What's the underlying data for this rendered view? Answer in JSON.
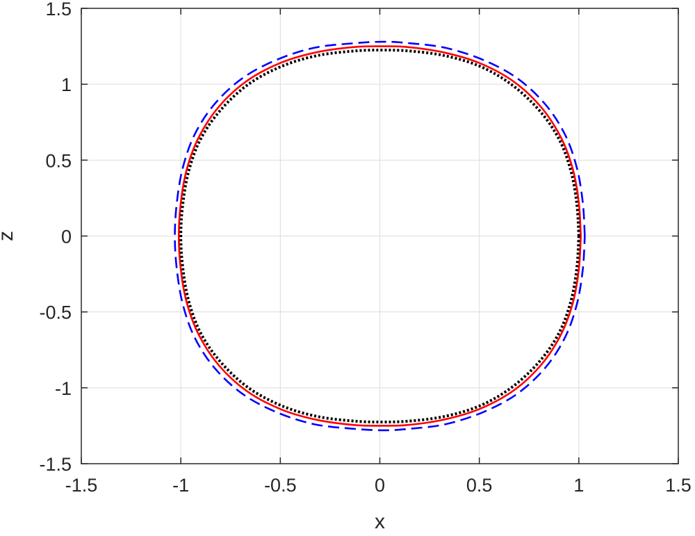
{
  "chart_data": {
    "type": "line",
    "title": "",
    "xlabel": "x",
    "ylabel": "z",
    "xlim": [
      -1.5,
      1.5
    ],
    "ylim": [
      -1.5,
      1.5
    ],
    "xticks": [
      -1.5,
      -1,
      -0.5,
      0,
      0.5,
      1,
      1.5
    ],
    "yticks": [
      -1.5,
      -1,
      -0.5,
      0,
      0.5,
      1,
      1.5
    ],
    "xtick_labels": [
      "-1.5",
      "-1",
      "-0.5",
      "0",
      "0.5",
      "1",
      "1.5"
    ],
    "ytick_labels": [
      "-1.5",
      "-1",
      "-0.5",
      "0",
      "0.5",
      "1",
      "1.5"
    ],
    "grid": true,
    "box": true,
    "series": [
      {
        "style": "dashed",
        "color": "#0000ff",
        "x": [
          1.03,
          1.02,
          0.99,
          0.93,
          0.83,
          0.69,
          0.52,
          0.33,
          0.15,
          0.02,
          -0.13,
          -0.33,
          -0.52,
          -0.69,
          -0.83,
          -0.93,
          -0.99,
          -1.02,
          -1.03,
          -1.02,
          -0.99,
          -0.93,
          -0.83,
          -0.69,
          -0.52,
          -0.33,
          -0.13,
          0.02,
          0.15,
          0.33,
          0.52,
          0.69,
          0.83,
          0.93,
          0.99,
          1.02,
          1.03
        ],
        "y": [
          0.0,
          0.22,
          0.45,
          0.67,
          0.87,
          1.04,
          1.16,
          1.24,
          1.27,
          1.28,
          1.27,
          1.24,
          1.16,
          1.04,
          0.87,
          0.67,
          0.45,
          0.22,
          0.0,
          -0.22,
          -0.45,
          -0.67,
          -0.87,
          -1.04,
          -1.16,
          -1.24,
          -1.27,
          -1.28,
          -1.27,
          -1.24,
          -1.16,
          -1.04,
          -0.87,
          -0.67,
          -0.45,
          -0.22,
          0.0
        ]
      },
      {
        "style": "solid",
        "color": "#ff0000",
        "x": [
          1.01,
          1.0,
          0.97,
          0.91,
          0.81,
          0.67,
          0.5,
          0.32,
          0.14,
          0.01,
          -0.13,
          -0.32,
          -0.5,
          -0.67,
          -0.81,
          -0.91,
          -0.97,
          -1.0,
          -1.01,
          -1.0,
          -0.97,
          -0.91,
          -0.81,
          -0.67,
          -0.5,
          -0.32,
          -0.13,
          0.01,
          0.14,
          0.32,
          0.5,
          0.67,
          0.81,
          0.91,
          0.97,
          1.0,
          1.01
        ],
        "y": [
          0.0,
          0.22,
          0.44,
          0.65,
          0.85,
          1.02,
          1.14,
          1.21,
          1.245,
          1.25,
          1.245,
          1.21,
          1.14,
          1.02,
          0.85,
          0.65,
          0.44,
          0.22,
          0.0,
          -0.22,
          -0.44,
          -0.65,
          -0.85,
          -1.02,
          -1.14,
          -1.21,
          -1.245,
          -1.25,
          -1.245,
          -1.21,
          -1.14,
          -1.02,
          -0.85,
          -0.65,
          -0.44,
          -0.22,
          0.0
        ]
      },
      {
        "style": "dotted",
        "color": "#000000",
        "x": [
          1.0,
          0.99,
          0.96,
          0.9,
          0.8,
          0.66,
          0.5,
          0.32,
          0.14,
          0.01,
          -0.12,
          -0.31,
          -0.49,
          -0.66,
          -0.8,
          -0.9,
          -0.96,
          -0.99,
          -1.0,
          -0.99,
          -0.96,
          -0.9,
          -0.8,
          -0.66,
          -0.49,
          -0.31,
          -0.12,
          0.01,
          0.14,
          0.32,
          0.5,
          0.66,
          0.8,
          0.9,
          0.96,
          0.99,
          1.0
        ],
        "y": [
          0.0,
          0.21,
          0.43,
          0.64,
          0.83,
          1.0,
          1.12,
          1.19,
          1.22,
          1.225,
          1.22,
          1.19,
          1.12,
          1.0,
          0.83,
          0.64,
          0.43,
          0.21,
          0.0,
          -0.21,
          -0.43,
          -0.64,
          -0.83,
          -1.0,
          -1.12,
          -1.19,
          -1.22,
          -1.225,
          -1.22,
          -1.19,
          -1.12,
          -1.0,
          -0.83,
          -0.64,
          -0.43,
          -0.21,
          0.0
        ]
      }
    ]
  }
}
